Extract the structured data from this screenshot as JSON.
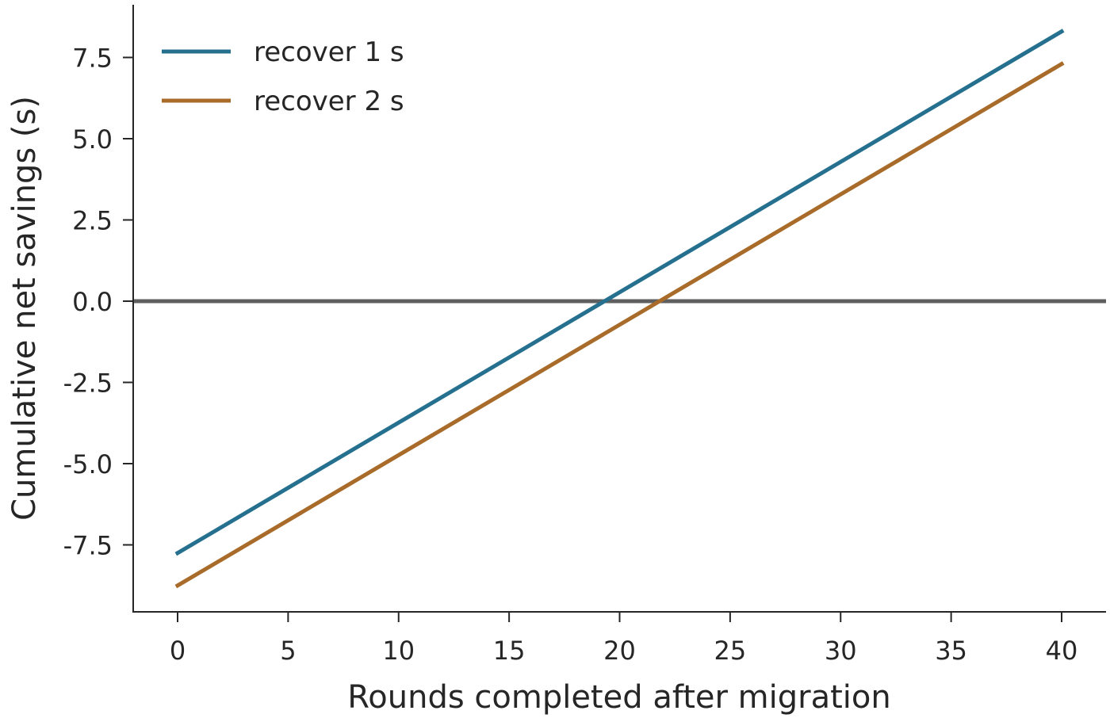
{
  "chart_data": {
    "type": "line",
    "title": "",
    "xlabel": "Rounds completed after migration",
    "ylabel": "Cumulative net savings (s)",
    "xlim": [
      -2,
      41
    ],
    "ylim": [
      -9.5,
      9.0
    ],
    "xticks": [
      0,
      5,
      10,
      15,
      20,
      25,
      30,
      35,
      40
    ],
    "xtick_labels": [
      "0",
      "5",
      "10",
      "15",
      "20",
      "25",
      "30",
      "35",
      "40"
    ],
    "yticks": [
      -7.5,
      -5.0,
      -2.5,
      0.0,
      2.5,
      5.0,
      7.5
    ],
    "ytick_labels": [
      "-7.5",
      "-5.0",
      "-2.5",
      "0.0",
      "2.5",
      "5.0",
      "7.5"
    ],
    "grid": false,
    "legend_position": "top-left",
    "reference_line": {
      "y": 0.0,
      "color": "#5f5f5f"
    },
    "series": [
      {
        "name": "recover 1 s",
        "color": "#26708f",
        "x": [
          0,
          40
        ],
        "y": [
          -7.75,
          8.3
        ]
      },
      {
        "name": "recover 2 s",
        "color": "#a86b2a",
        "x": [
          0,
          40
        ],
        "y": [
          -8.75,
          7.3
        ]
      }
    ]
  }
}
